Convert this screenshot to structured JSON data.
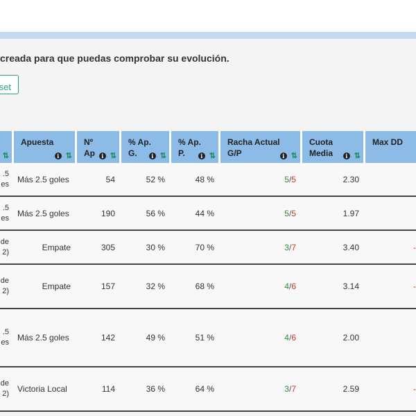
{
  "intro_text": "creada para que puedas comprobar su evolución.",
  "reset_label": "set",
  "colors": {
    "header_bg": "#8cbbe8",
    "win": "#2e8b3e",
    "loss": "#c0392b",
    "accent": "#2e9e7e"
  },
  "headers": {
    "apuesta": "Apuesta",
    "n_ap_1": "Nº",
    "n_ap_2": "Ap",
    "pct_g_1": "% Ap.",
    "pct_g_2": "G.",
    "pct_p_1": "% Ap.",
    "pct_p_2": "P.",
    "racha_1": "Racha Actual",
    "racha_2": "G/P",
    "cuota_1": "Cuota",
    "cuota_2": "Media",
    "maxdd": "Max DD"
  },
  "rows": [
    {
      "match_1": ".5",
      "match_2": "es",
      "apuesta": "Más 2.5 goles",
      "n": "54",
      "pct_g": "52 %",
      "pct_p": "48 %",
      "racha_g": "5",
      "racha_p": "5",
      "cuota": "2.30",
      "dd": ""
    },
    {
      "match_1": ".5",
      "match_2": "es",
      "apuesta": "Más 2.5 goles",
      "n": "190",
      "pct_g": "56 %",
      "pct_p": "44 %",
      "racha_g": "5",
      "racha_p": "5",
      "cuota": "1.97",
      "dd": ""
    },
    {
      "match_1": "de",
      "match_2": "2)",
      "apuesta": "Empate",
      "n": "305",
      "pct_g": "30 %",
      "pct_p": "70 %",
      "racha_g": "3",
      "racha_p": "7",
      "cuota": "3.40",
      "dd": "-"
    },
    {
      "match_1": "de",
      "match_2": "2)",
      "apuesta": "Empate",
      "n": "157",
      "pct_g": "32 %",
      "pct_p": "68 %",
      "racha_g": "4",
      "racha_p": "6",
      "cuota": "3.14",
      "dd": "-"
    },
    {
      "match_1": ".5",
      "match_2": "es",
      "apuesta": "Más 2.5 goles",
      "n": "142",
      "pct_g": "49 %",
      "pct_p": "51 %",
      "racha_g": "4",
      "racha_p": "6",
      "cuota": "2.00",
      "dd": ""
    },
    {
      "match_1": "de",
      "match_2": "2)",
      "apuesta": "Victoria Local",
      "n": "114",
      "pct_g": "36 %",
      "pct_p": "64 %",
      "racha_g": "3",
      "racha_p": "7",
      "cuota": "2.59",
      "dd": "-"
    }
  ]
}
